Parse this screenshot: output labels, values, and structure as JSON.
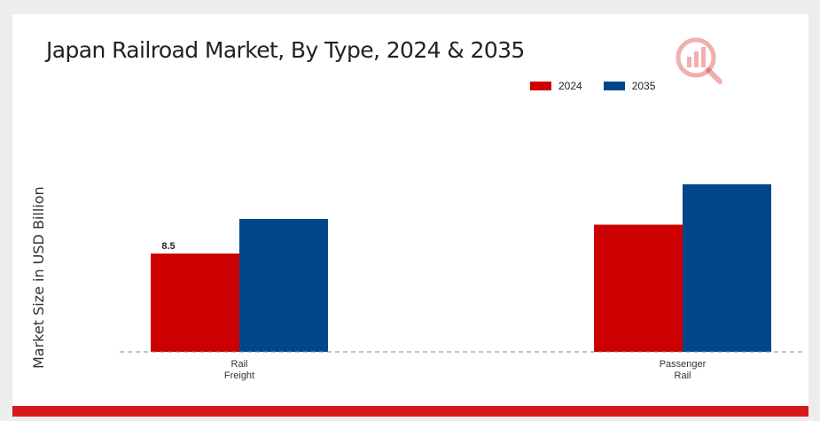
{
  "chart_data": {
    "type": "bar",
    "title": "Japan Railroad Market, By Type, 2024 & 2035",
    "ylabel": "Market Size in USD Billion",
    "xlabel": "",
    "categories": [
      "Rail\nFreight",
      "Passenger\nRail"
    ],
    "series": [
      {
        "name": "2024",
        "values": [
          8.5,
          11.0
        ],
        "color": "#cc0000"
      },
      {
        "name": "2035",
        "values": [
          11.5,
          14.5
        ],
        "color": "#00478a"
      }
    ],
    "data_labels": [
      {
        "series": 0,
        "category": 0,
        "text": "8.5"
      }
    ],
    "ylim": [
      0,
      22
    ],
    "grid": false,
    "legend_position": "top-right"
  },
  "logo": {
    "icon": "market-research-logo-icon",
    "color": "#d7191c"
  }
}
